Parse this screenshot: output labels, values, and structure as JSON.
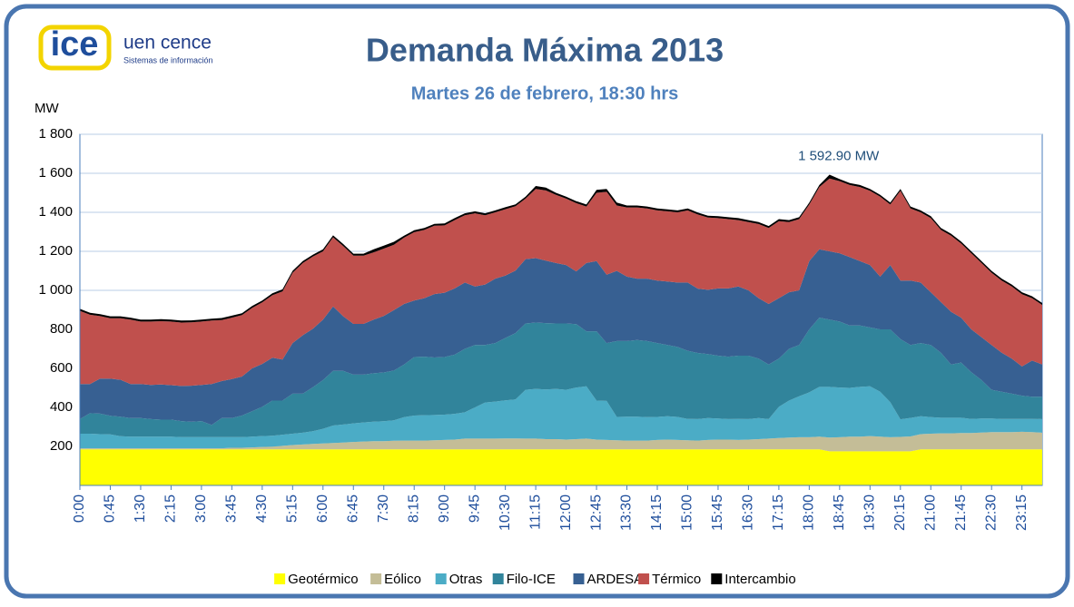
{
  "header": {
    "logo": "ice",
    "brand": "uen cence",
    "brand_sub": "Sistemas de información"
  },
  "chart_data": {
    "type": "stacked_area",
    "title": "Demanda Máxima 2013",
    "subtitle": "Martes 26 de febrero, 18:30 hrs",
    "y_label": "MW",
    "annotation": "1 592.90 MW",
    "categories": [
      "0:00",
      null,
      null,
      "0:45",
      null,
      null,
      "1:30",
      null,
      null,
      "2:15",
      null,
      null,
      "3:00",
      null,
      null,
      "3:45",
      null,
      null,
      "4:30",
      null,
      null,
      "5:15",
      null,
      null,
      "6:00",
      null,
      null,
      "6:45",
      null,
      null,
      "7:30",
      null,
      null,
      "8:15",
      null,
      null,
      "9:00",
      null,
      null,
      "9:45",
      null,
      null,
      "10:30",
      null,
      null,
      "11:15",
      null,
      null,
      "12:00",
      null,
      null,
      "12:45",
      null,
      null,
      "13:30",
      null,
      null,
      "14:15",
      null,
      null,
      "15:00",
      null,
      null,
      "15:45",
      null,
      null,
      "16:30",
      null,
      null,
      "17:15",
      null,
      null,
      "18:00",
      null,
      null,
      "18:45",
      null,
      null,
      "19:30",
      null,
      null,
      "20:15",
      null,
      null,
      "21:00",
      null,
      null,
      "21:45",
      null,
      null,
      "22:30",
      null,
      null,
      "23:15",
      null,
      null
    ],
    "ylim": [
      0,
      1800
    ],
    "yticks": [
      200,
      400,
      600,
      800,
      {
        "value": 1000,
        "label": "1 000"
      },
      {
        "value": 1200,
        "label": "1 200"
      },
      {
        "value": 1400,
        "label": "1 400"
      },
      {
        "value": 1600,
        "label": "1 600"
      },
      {
        "value": 1800,
        "label": "1 800"
      }
    ],
    "grid": true,
    "series": [
      {
        "name": "Geotérmico",
        "color": "#ffff00",
        "values": [
          185,
          185,
          185,
          185,
          185,
          185,
          185,
          185,
          185,
          185,
          185,
          185,
          185,
          185,
          185,
          185,
          185,
          185,
          185,
          185,
          185,
          185,
          185,
          185,
          185,
          185,
          185,
          185,
          185,
          185,
          185,
          185,
          185,
          185,
          185,
          185,
          185,
          185,
          185,
          185,
          185,
          185,
          185,
          185,
          185,
          185,
          185,
          185,
          185,
          185,
          185,
          185,
          185,
          185,
          185,
          185,
          185,
          185,
          185,
          185,
          185,
          185,
          185,
          185,
          185,
          185,
          185,
          185,
          185,
          185,
          185,
          185,
          185,
          185,
          175,
          175,
          175,
          175,
          175,
          175,
          175,
          175,
          175,
          185,
          185,
          185,
          185,
          185,
          185,
          185,
          185,
          185,
          185,
          185,
          185,
          185
        ]
      },
      {
        "name": "Eólico",
        "color": "#c4bd97",
        "values": [
          5,
          5,
          5,
          5,
          5,
          5,
          5,
          5,
          5,
          5,
          5,
          5,
          5,
          5,
          5,
          8,
          8,
          10,
          12,
          14,
          18,
          22,
          25,
          28,
          30,
          32,
          35,
          38,
          40,
          42,
          42,
          44,
          45,
          45,
          45,
          46,
          48,
          50,
          55,
          55,
          55,
          55,
          56,
          56,
          55,
          55,
          52,
          52,
          50,
          52,
          55,
          50,
          48,
          46,
          45,
          45,
          45,
          48,
          50,
          48,
          46,
          45,
          48,
          50,
          50,
          48,
          50,
          52,
          55,
          58,
          60,
          62,
          62,
          65,
          70,
          72,
          75,
          75,
          78,
          75,
          72,
          74,
          76,
          78,
          80,
          82,
          82,
          84,
          84,
          86,
          88,
          88,
          88,
          90,
          88,
          85
        ]
      },
      {
        "name": "Otras",
        "color": "#4bacc6",
        "values": [
          75,
          75,
          73,
          72,
          62,
          60,
          60,
          60,
          60,
          60,
          58,
          58,
          58,
          58,
          58,
          55,
          55,
          55,
          56,
          56,
          57,
          58,
          60,
          65,
          75,
          90,
          92,
          95,
          98,
          100,
          102,
          105,
          120,
          128,
          130,
          130,
          130,
          132,
          135,
          160,
          185,
          190,
          195,
          200,
          250,
          255,
          255,
          258,
          255,
          265,
          268,
          200,
          200,
          120,
          122,
          122,
          120,
          118,
          120,
          118,
          110,
          110,
          112,
          108,
          105,
          108,
          105,
          108,
          100,
          160,
          190,
          210,
          230,
          255,
          260,
          255,
          250,
          255,
          255,
          230,
          180,
          90,
          95,
          92,
          85,
          80,
          80,
          78,
          72,
          72,
          70,
          68,
          68,
          66,
          68,
          70
        ]
      },
      {
        "name": "Filo-ICE",
        "color": "#31849b",
        "values": [
          75,
          105,
          105,
          95,
          100,
          95,
          95,
          90,
          87,
          87,
          82,
          78,
          82,
          62,
          97,
          97,
          110,
          130,
          150,
          180,
          175,
          205,
          200,
          225,
          250,
          280,
          275,
          250,
          245,
          248,
          250,
          255,
          270,
          300,
          300,
          295,
          295,
          303,
          325,
          320,
          295,
          300,
          320,
          340,
          340,
          340,
          340,
          335,
          340,
          325,
          282,
          355,
          297,
          389,
          388,
          393,
          390,
          379,
          365,
          359,
          349,
          339,
          328,
          322,
          320,
          324,
          325,
          305,
          280,
          247,
          265,
          263,
          323,
          355,
          345,
          338,
          320,
          315,
          302,
          320,
          373,
          411,
          374,
          375,
          370,
          333,
          273,
          283,
          239,
          197,
          147,
          139,
          129,
          119,
          114,
          115
        ]
      },
      {
        "name": "ARDESA",
        "color": "#376092",
        "values": [
          180,
          150,
          180,
          190,
          190,
          175,
          175,
          175,
          180,
          177,
          180,
          185,
          185,
          210,
          190,
          200,
          200,
          220,
          220,
          220,
          210,
          260,
          300,
          300,
          310,
          330,
          280,
          260,
          260,
          275,
          290,
          310,
          310,
          290,
          300,
          325,
          330,
          340,
          340,
          300,
          310,
          330,
          320,
          320,
          330,
          330,
          320,
          310,
          300,
          270,
          350,
          360,
          350,
          360,
          330,
          315,
          320,
          320,
          325,
          330,
          350,
          330,
          330,
          345,
          350,
          355,
          335,
          310,
          310,
          310,
          290,
          280,
          350,
          350,
          350,
          350,
          350,
          330,
          320,
          270,
          330,
          300,
          330,
          310,
          270,
          260,
          270,
          230,
          220,
          220,
          230,
          200,
          180,
          150,
          185,
          165
        ]
      },
      {
        "name": "Térmico",
        "color": "#c0504d",
        "values": [
          375,
          355,
          320,
          310,
          315,
          330,
          320,
          325,
          325,
          326,
          325,
          325,
          325,
          325,
          313,
          315,
          315,
          310,
          315,
          320,
          350,
          360,
          370,
          370,
          350,
          355,
          360,
          350,
          350,
          345,
          345,
          335,
          340,
          350,
          350,
          350,
          345,
          350,
          345,
          375,
          355,
          340,
          340,
          330,
          310,
          355,
          360,
          350,
          340,
          350,
          290,
          350,
          425,
          335,
          355,
          365,
          360,
          360,
          360,
          360,
          370,
          380,
          370,
          360,
          355,
          340,
          350,
          380,
          390,
          395,
          360,
          365,
          290,
          320,
          373,
          370,
          370,
          380,
          380,
          410,
          310,
          460,
          370,
          360,
          380,
          370,
          390,
          380,
          390,
          380,
          370,
          370,
          370,
          370,
          320,
          305
        ]
      },
      {
        "name": "Intercambio",
        "color": "#000000",
        "values": [
          10,
          10,
          10,
          10,
          10,
          10,
          10,
          10,
          10,
          10,
          10,
          10,
          10,
          10,
          10,
          10,
          10,
          10,
          10,
          10,
          10,
          10,
          10,
          10,
          10,
          10,
          10,
          10,
          10,
          15,
          15,
          15,
          10,
          10,
          10,
          10,
          10,
          10,
          10,
          10,
          10,
          10,
          10,
          10,
          10,
          15,
          15,
          10,
          10,
          10,
          10,
          15,
          15,
          15,
          10,
          10,
          10,
          10,
          10,
          10,
          10,
          10,
          10,
          10,
          10,
          10,
          10,
          10,
          10,
          10,
          10,
          10,
          10,
          10,
          20,
          10,
          10,
          10,
          10,
          10,
          10,
          10,
          10,
          10,
          10,
          10,
          10,
          10,
          10,
          10,
          10,
          10,
          10,
          10,
          10,
          10
        ]
      }
    ]
  }
}
